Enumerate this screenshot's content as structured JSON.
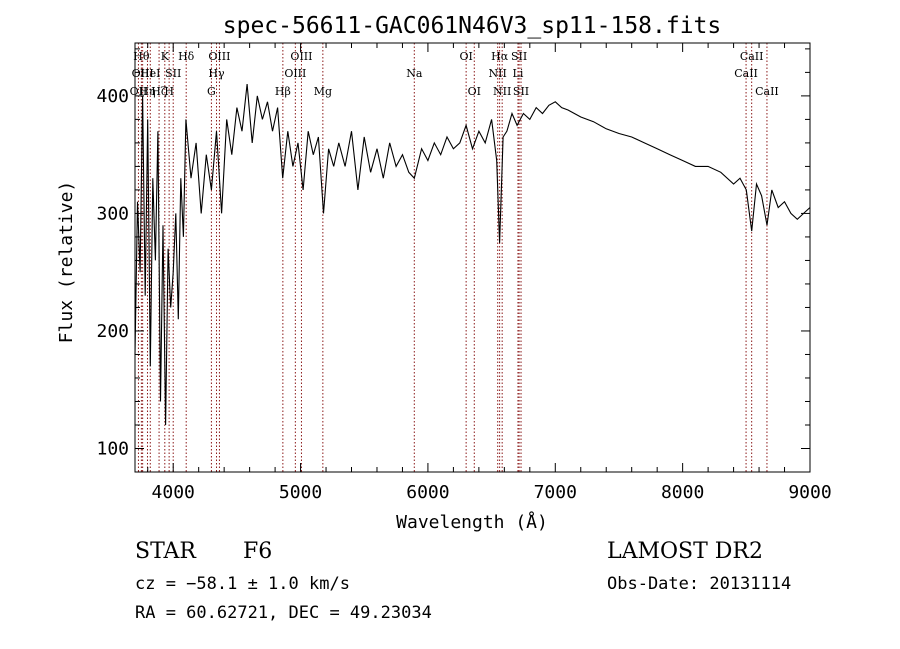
{
  "chart_data": {
    "type": "line",
    "title": "spec-56611-GAC061N46V3_sp11-158.fits",
    "xlabel": "Wavelength (Å)",
    "ylabel": "Flux (relative)",
    "xlim": [
      3700,
      9000
    ],
    "ylim": [
      80,
      445
    ],
    "x_ticks": [
      4000,
      5000,
      6000,
      7000,
      8000,
      9000
    ],
    "y_ticks": [
      100,
      200,
      300,
      400
    ],
    "line_color": "#000000",
    "marker_color": "#8b1a1a",
    "series": [
      {
        "x": [
          3700,
          3720,
          3740,
          3760,
          3780,
          3800,
          3820,
          3840,
          3860,
          3880,
          3900,
          3920,
          3940,
          3960,
          3980,
          4000,
          4020,
          4040,
          4060,
          4080,
          4100,
          4140,
          4180,
          4220,
          4260,
          4300,
          4340,
          4380,
          4420,
          4460,
          4500,
          4540,
          4580,
          4620,
          4660,
          4700,
          4740,
          4780,
          4820,
          4860,
          4900,
          4940,
          4980,
          5020,
          5060,
          5100,
          5140,
          5180,
          5220,
          5260,
          5300,
          5350,
          5400,
          5450,
          5500,
          5550,
          5600,
          5650,
          5700,
          5750,
          5800,
          5850,
          5893,
          5950,
          6000,
          6050,
          6100,
          6150,
          6200,
          6250,
          6300,
          6350,
          6400,
          6450,
          6500,
          6540,
          6563,
          6590,
          6620,
          6660,
          6700,
          6750,
          6800,
          6850,
          6900,
          6950,
          7000,
          7050,
          7100,
          7150,
          7200,
          7300,
          7400,
          7500,
          7600,
          7700,
          7800,
          7900,
          8000,
          8100,
          8200,
          8300,
          8400,
          8450,
          8500,
          8542,
          8580,
          8620,
          8662,
          8700,
          8750,
          8800,
          8850,
          8900,
          8950,
          9000
        ],
        "y": [
          180,
          310,
          250,
          400,
          230,
          380,
          170,
          330,
          260,
          370,
          140,
          290,
          120,
          270,
          220,
          250,
          300,
          210,
          330,
          280,
          380,
          330,
          360,
          300,
          350,
          320,
          370,
          300,
          380,
          350,
          390,
          370,
          410,
          360,
          400,
          380,
          395,
          370,
          390,
          330,
          370,
          340,
          360,
          320,
          370,
          350,
          365,
          300,
          355,
          340,
          360,
          340,
          370,
          320,
          365,
          335,
          355,
          330,
          360,
          340,
          350,
          335,
          330,
          355,
          345,
          360,
          350,
          365,
          355,
          360,
          375,
          355,
          370,
          360,
          380,
          345,
          275,
          365,
          370,
          385,
          375,
          385,
          380,
          390,
          385,
          392,
          395,
          390,
          388,
          385,
          382,
          378,
          372,
          368,
          365,
          360,
          355,
          350,
          345,
          340,
          340,
          335,
          325,
          330,
          320,
          285,
          325,
          315,
          290,
          320,
          305,
          310,
          300,
          295,
          300,
          305
        ]
      }
    ],
    "lines": [
      {
        "x": 3727,
        "label": "OII",
        "row": 2
      },
      {
        "x": 3750,
        "label": "Hθ",
        "row": 0
      },
      {
        "x": 3760,
        "label": "OIII",
        "row": 1
      },
      {
        "x": 3798,
        "label": "Hη",
        "row": 2
      },
      {
        "x": 3820,
        "label": "HeI",
        "row": 1
      },
      {
        "x": 3889,
        "label": "Hζ",
        "row": 2
      },
      {
        "x": 3934,
        "label": "K",
        "row": 0
      },
      {
        "x": 3968,
        "label": "H",
        "row": 2
      },
      {
        "x": 4000,
        "label": "SII",
        "row": 1
      },
      {
        "x": 4102,
        "label": "Hδ",
        "row": 0
      },
      {
        "x": 4300,
        "label": "G",
        "row": 2
      },
      {
        "x": 4340,
        "label": "Hγ",
        "row": 1
      },
      {
        "x": 4363,
        "label": "OIII",
        "row": 0
      },
      {
        "x": 4861,
        "label": "Hβ",
        "row": 2
      },
      {
        "x": 4959,
        "label": "OIII",
        "row": 1
      },
      {
        "x": 5007,
        "label": "OIII",
        "row": 0
      },
      {
        "x": 5175,
        "label": "Mg",
        "row": 2
      },
      {
        "x": 5893,
        "label": "Na",
        "row": 1
      },
      {
        "x": 6300,
        "label": "OI",
        "row": 0
      },
      {
        "x": 6364,
        "label": "OI",
        "row": 2
      },
      {
        "x": 6548,
        "label": "NII",
        "row": 1
      },
      {
        "x": 6563,
        "label": "Hα",
        "row": 0
      },
      {
        "x": 6583,
        "label": "NII",
        "row": 2
      },
      {
        "x": 6707,
        "label": "Li",
        "row": 1
      },
      {
        "x": 6716,
        "label": "SII",
        "row": 0
      },
      {
        "x": 6731,
        "label": "SII",
        "row": 2
      },
      {
        "x": 8498,
        "label": "CaII",
        "row": 1
      },
      {
        "x": 8542,
        "label": "CaII",
        "row": 0
      },
      {
        "x": 8662,
        "label": "CaII",
        "row": 2
      }
    ]
  },
  "info": {
    "class_label": "STAR",
    "subclass": "F6",
    "cz": "cz = −58.1 ± 1.0 km/s",
    "coords": "RA =  60.62721, DEC =  49.23034",
    "survey": "LAMOST DR2",
    "obs_date": "Obs-Date: 20131114"
  }
}
